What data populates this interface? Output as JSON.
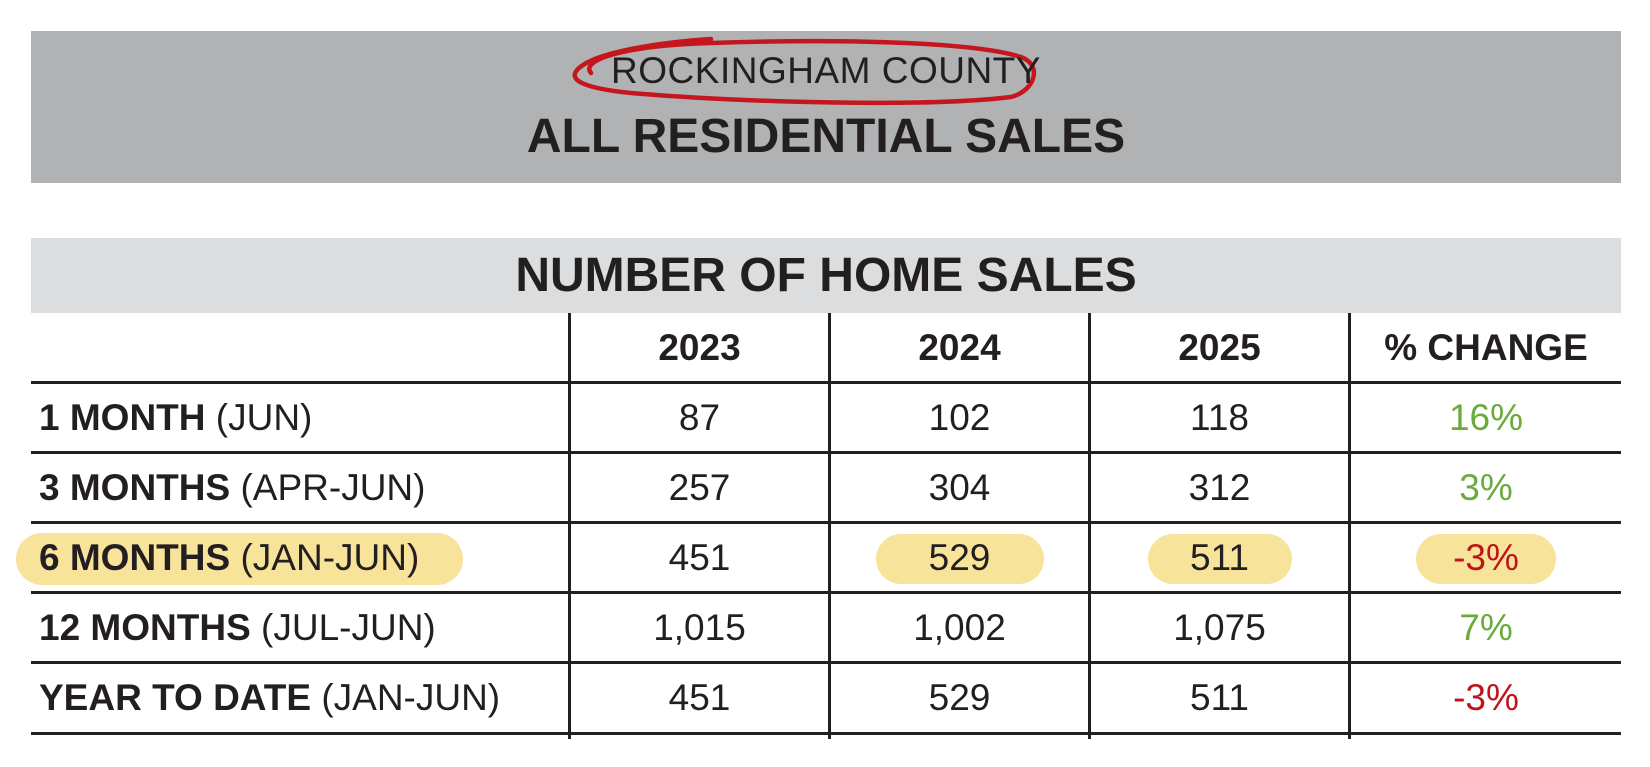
{
  "header": {
    "county": "ROCKINGHAM COUNTY",
    "title": "ALL RESIDENTIAL SALES"
  },
  "chart_data": {
    "type": "table",
    "title": "NUMBER OF HOME SALES",
    "columns": [
      "2023",
      "2024",
      "2025",
      "% CHANGE"
    ],
    "rows": [
      {
        "label": "1 MONTH",
        "period": "(JUN)",
        "values": [
          "87",
          "102",
          "118"
        ],
        "change": "16%",
        "direction": "up",
        "highlighted": false
      },
      {
        "label": "3 MONTHS",
        "period": "(APR-JUN)",
        "values": [
          "257",
          "304",
          "312"
        ],
        "change": "3%",
        "direction": "up",
        "highlighted": false
      },
      {
        "label": "6 MONTHS",
        "period": "(JAN-JUN)",
        "values": [
          "451",
          "529",
          "511"
        ],
        "change": "-3%",
        "direction": "down",
        "highlighted": true
      },
      {
        "label": "12 MONTHS",
        "period": "(JUL-JUN)",
        "values": [
          "1,015",
          "1,002",
          "1,075"
        ],
        "change": "7%",
        "direction": "up",
        "highlighted": false
      },
      {
        "label": "YEAR TO DATE",
        "period": "(JAN-JUN)",
        "values": [
          "451",
          "529",
          "511"
        ],
        "change": "-3%",
        "direction": "down",
        "highlighted": false
      }
    ]
  },
  "colors": {
    "positive": "#6aab3c",
    "negative": "#c0131a",
    "highlight": "#f7e39a",
    "circle_annotation": "#c4161c"
  }
}
